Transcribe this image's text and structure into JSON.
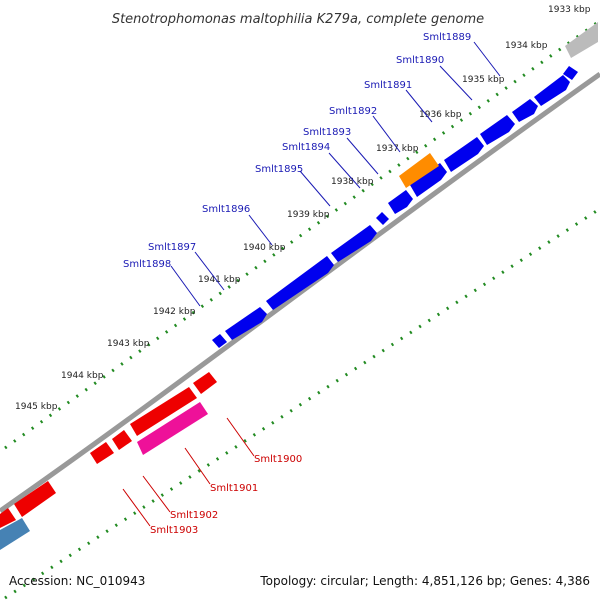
{
  "title": "Stenotrophomonas maltophilia K279a, complete genome",
  "accession": "Accession: NC_010943",
  "summary": "Topology: circular; Length: 4,851,126 bp; Genes: 4,386",
  "ticks": [
    "1933 kbp",
    "1934 kbp",
    "1935 kbp",
    "1936 kbp",
    "1937 kbp",
    "1938 kbp",
    "1939 kbp",
    "1940 kbp",
    "1941 kbp",
    "1942 kbp",
    "1943 kbp",
    "1944 kbp",
    "1945 kbp"
  ],
  "forward_genes": [
    "Smlt1889",
    "Smlt1890",
    "Smlt1891",
    "Smlt1892",
    "Smlt1893",
    "Smlt1894",
    "Smlt1895",
    "Smlt1896",
    "Smlt1897",
    "Smlt1898"
  ],
  "reverse_genes": [
    "Smlt1900",
    "Smlt1901",
    "Smlt1902",
    "Smlt1903"
  ],
  "colors": {
    "forward": "#0000ee",
    "reverse": "#ee0000",
    "rna": "#ff8c00",
    "pink": "#ee1199",
    "grey": "#bbbbbb",
    "steel": "#4682b4",
    "backbone": "#888888",
    "dots": "#228b22"
  }
}
